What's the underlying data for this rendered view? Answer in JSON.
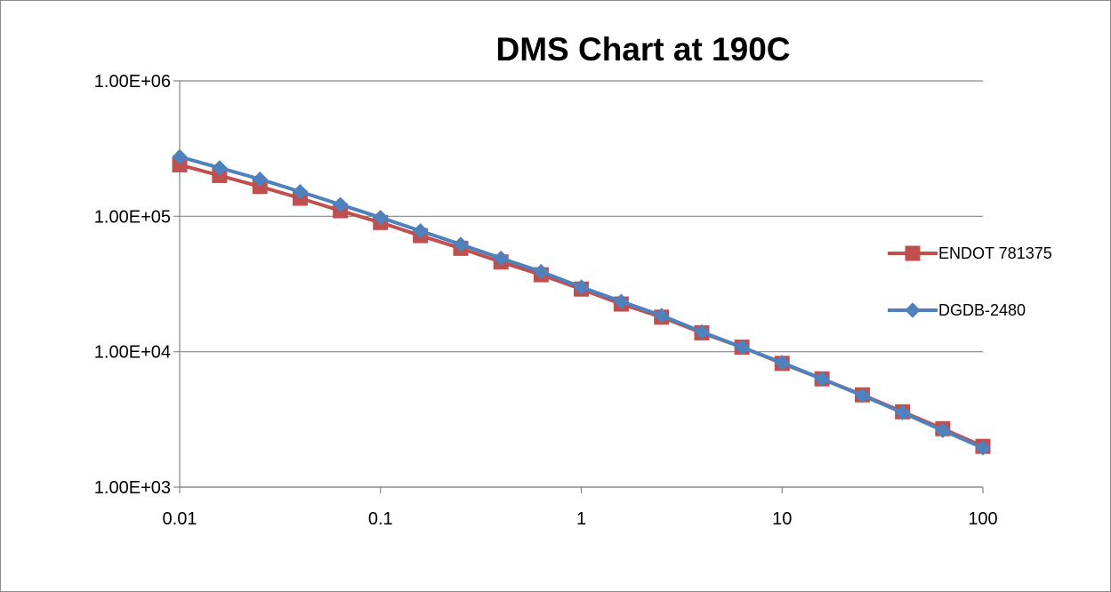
{
  "chart_data": {
    "type": "line",
    "title": "DMS Chart at 190C",
    "xlabel": "",
    "ylabel": "",
    "x_scale": "log",
    "y_scale": "log",
    "xlim": [
      0.01,
      100
    ],
    "ylim": [
      1000,
      1000000
    ],
    "x_ticks": [
      0.01,
      0.1,
      1,
      10,
      100
    ],
    "x_tick_labels": [
      "0.01",
      "0.1",
      "1",
      "10",
      "100"
    ],
    "y_ticks": [
      1000,
      10000,
      100000,
      1000000
    ],
    "y_tick_labels": [
      "1.00E+03",
      "1.00E+04",
      "1.00E+05",
      "1.00E+06"
    ],
    "grid": {
      "x": false,
      "y": true
    },
    "legend_position": "right",
    "x": [
      0.01,
      0.0158,
      0.0251,
      0.0398,
      0.0631,
      0.1,
      0.158,
      0.251,
      0.398,
      0.631,
      1,
      1.58,
      2.51,
      3.98,
      6.31,
      10,
      15.8,
      25.1,
      39.8,
      63.1,
      100
    ],
    "series": [
      {
        "name": "ENDOT 781375",
        "color": "#c0504d",
        "marker": "square",
        "values": [
          240000,
          200000,
          166000,
          136000,
          110000,
          90000,
          72000,
          58000,
          46000,
          37000,
          29000,
          22500,
          18000,
          13800,
          10800,
          8200,
          6300,
          4800,
          3600,
          2700,
          2000
        ]
      },
      {
        "name": "DGDB-2480",
        "color": "#4f81bd",
        "marker": "diamond",
        "values": [
          275000,
          228000,
          188000,
          152000,
          122000,
          98000,
          78000,
          62000,
          49000,
          39000,
          30000,
          23500,
          18500,
          14000,
          10800,
          8300,
          6300,
          4750,
          3550,
          2620,
          1950
        ]
      }
    ]
  }
}
